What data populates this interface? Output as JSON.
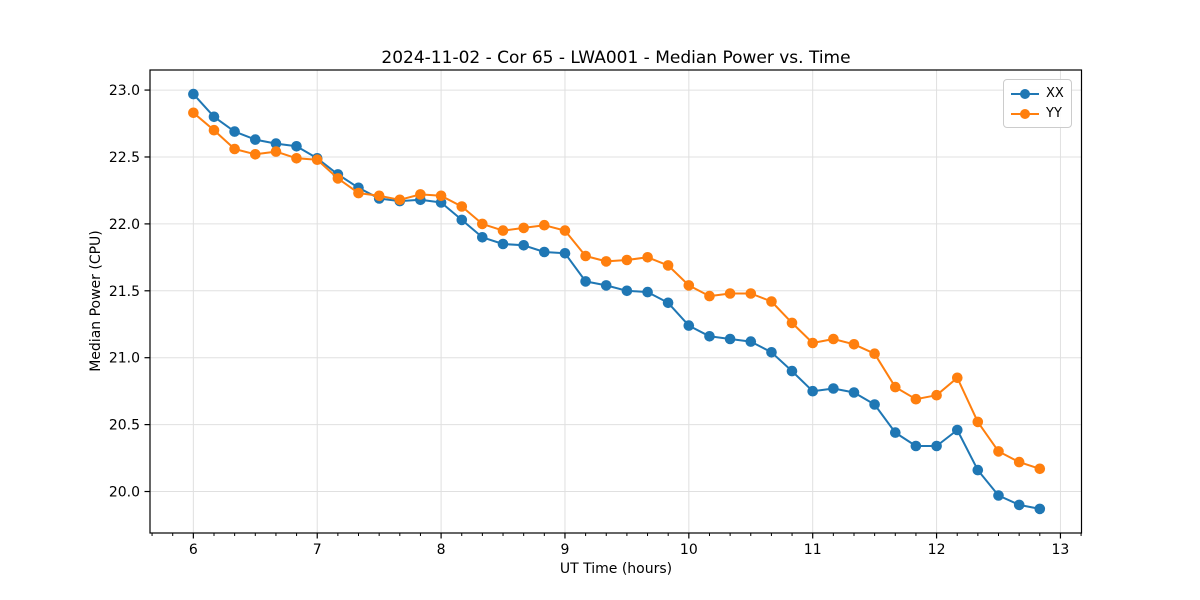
{
  "figure": {
    "background": "#ffffff"
  },
  "chart_data": {
    "type": "line",
    "title": "2024-11-02 - Cor 65 - LWA001 - Median Power vs. Time",
    "xlabel": "UT Time (hours)",
    "ylabel": "Median Power (CPU)",
    "xlim": [
      5.65,
      13.17
    ],
    "ylim": [
      19.69,
      23.15
    ],
    "xtick_values": [
      6,
      7,
      8,
      9,
      10,
      11,
      12,
      13
    ],
    "xtick_labels": [
      "6",
      "7",
      "8",
      "9",
      "10",
      "11",
      "12",
      "13"
    ],
    "ytick_values": [
      20.0,
      20.5,
      21.0,
      21.5,
      22.0,
      22.5,
      23.0
    ],
    "ytick_labels": [
      "20.0",
      "20.5",
      "21.0",
      "21.5",
      "22.0",
      "22.5",
      "23.0"
    ],
    "minor_ticks_x_per_hour": 6,
    "grid": true,
    "grid_color": "#e0e0e0",
    "spine_color": "#000000",
    "legend_position": "upper right",
    "x": [
      6.0,
      6.167,
      6.333,
      6.5,
      6.667,
      6.833,
      7.0,
      7.167,
      7.333,
      7.5,
      7.667,
      7.833,
      8.0,
      8.167,
      8.333,
      8.5,
      8.667,
      8.833,
      9.0,
      9.167,
      9.333,
      9.5,
      9.667,
      9.833,
      10.0,
      10.167,
      10.333,
      10.5,
      10.667,
      10.833,
      11.0,
      11.167,
      11.333,
      11.5,
      11.667,
      11.833,
      12.0,
      12.167,
      12.333,
      12.5,
      12.667,
      12.833
    ],
    "series": [
      {
        "name": "XX",
        "color": "#1f77b4",
        "marker": "circle",
        "values": [
          22.97,
          22.8,
          22.69,
          22.63,
          22.6,
          22.58,
          22.49,
          22.37,
          22.27,
          22.19,
          22.17,
          22.18,
          22.16,
          22.03,
          21.9,
          21.85,
          21.84,
          21.79,
          21.78,
          21.57,
          21.54,
          21.5,
          21.49,
          21.41,
          21.24,
          21.16,
          21.14,
          21.12,
          21.04,
          20.9,
          20.75,
          20.77,
          20.74,
          20.65,
          20.44,
          20.34,
          20.34,
          20.46,
          20.16,
          19.97,
          19.9,
          19.87
        ]
      },
      {
        "name": "YY",
        "color": "#ff7f0e",
        "marker": "circle",
        "values": [
          22.83,
          22.7,
          22.56,
          22.52,
          22.54,
          22.49,
          22.48,
          22.34,
          22.23,
          22.21,
          22.18,
          22.22,
          22.21,
          22.13,
          22.0,
          21.95,
          21.97,
          21.99,
          21.95,
          21.76,
          21.72,
          21.73,
          21.75,
          21.69,
          21.54,
          21.46,
          21.48,
          21.48,
          21.42,
          21.26,
          21.11,
          21.14,
          21.1,
          21.03,
          20.78,
          20.69,
          20.72,
          20.85,
          20.52,
          20.3,
          20.22,
          20.17
        ]
      }
    ]
  }
}
